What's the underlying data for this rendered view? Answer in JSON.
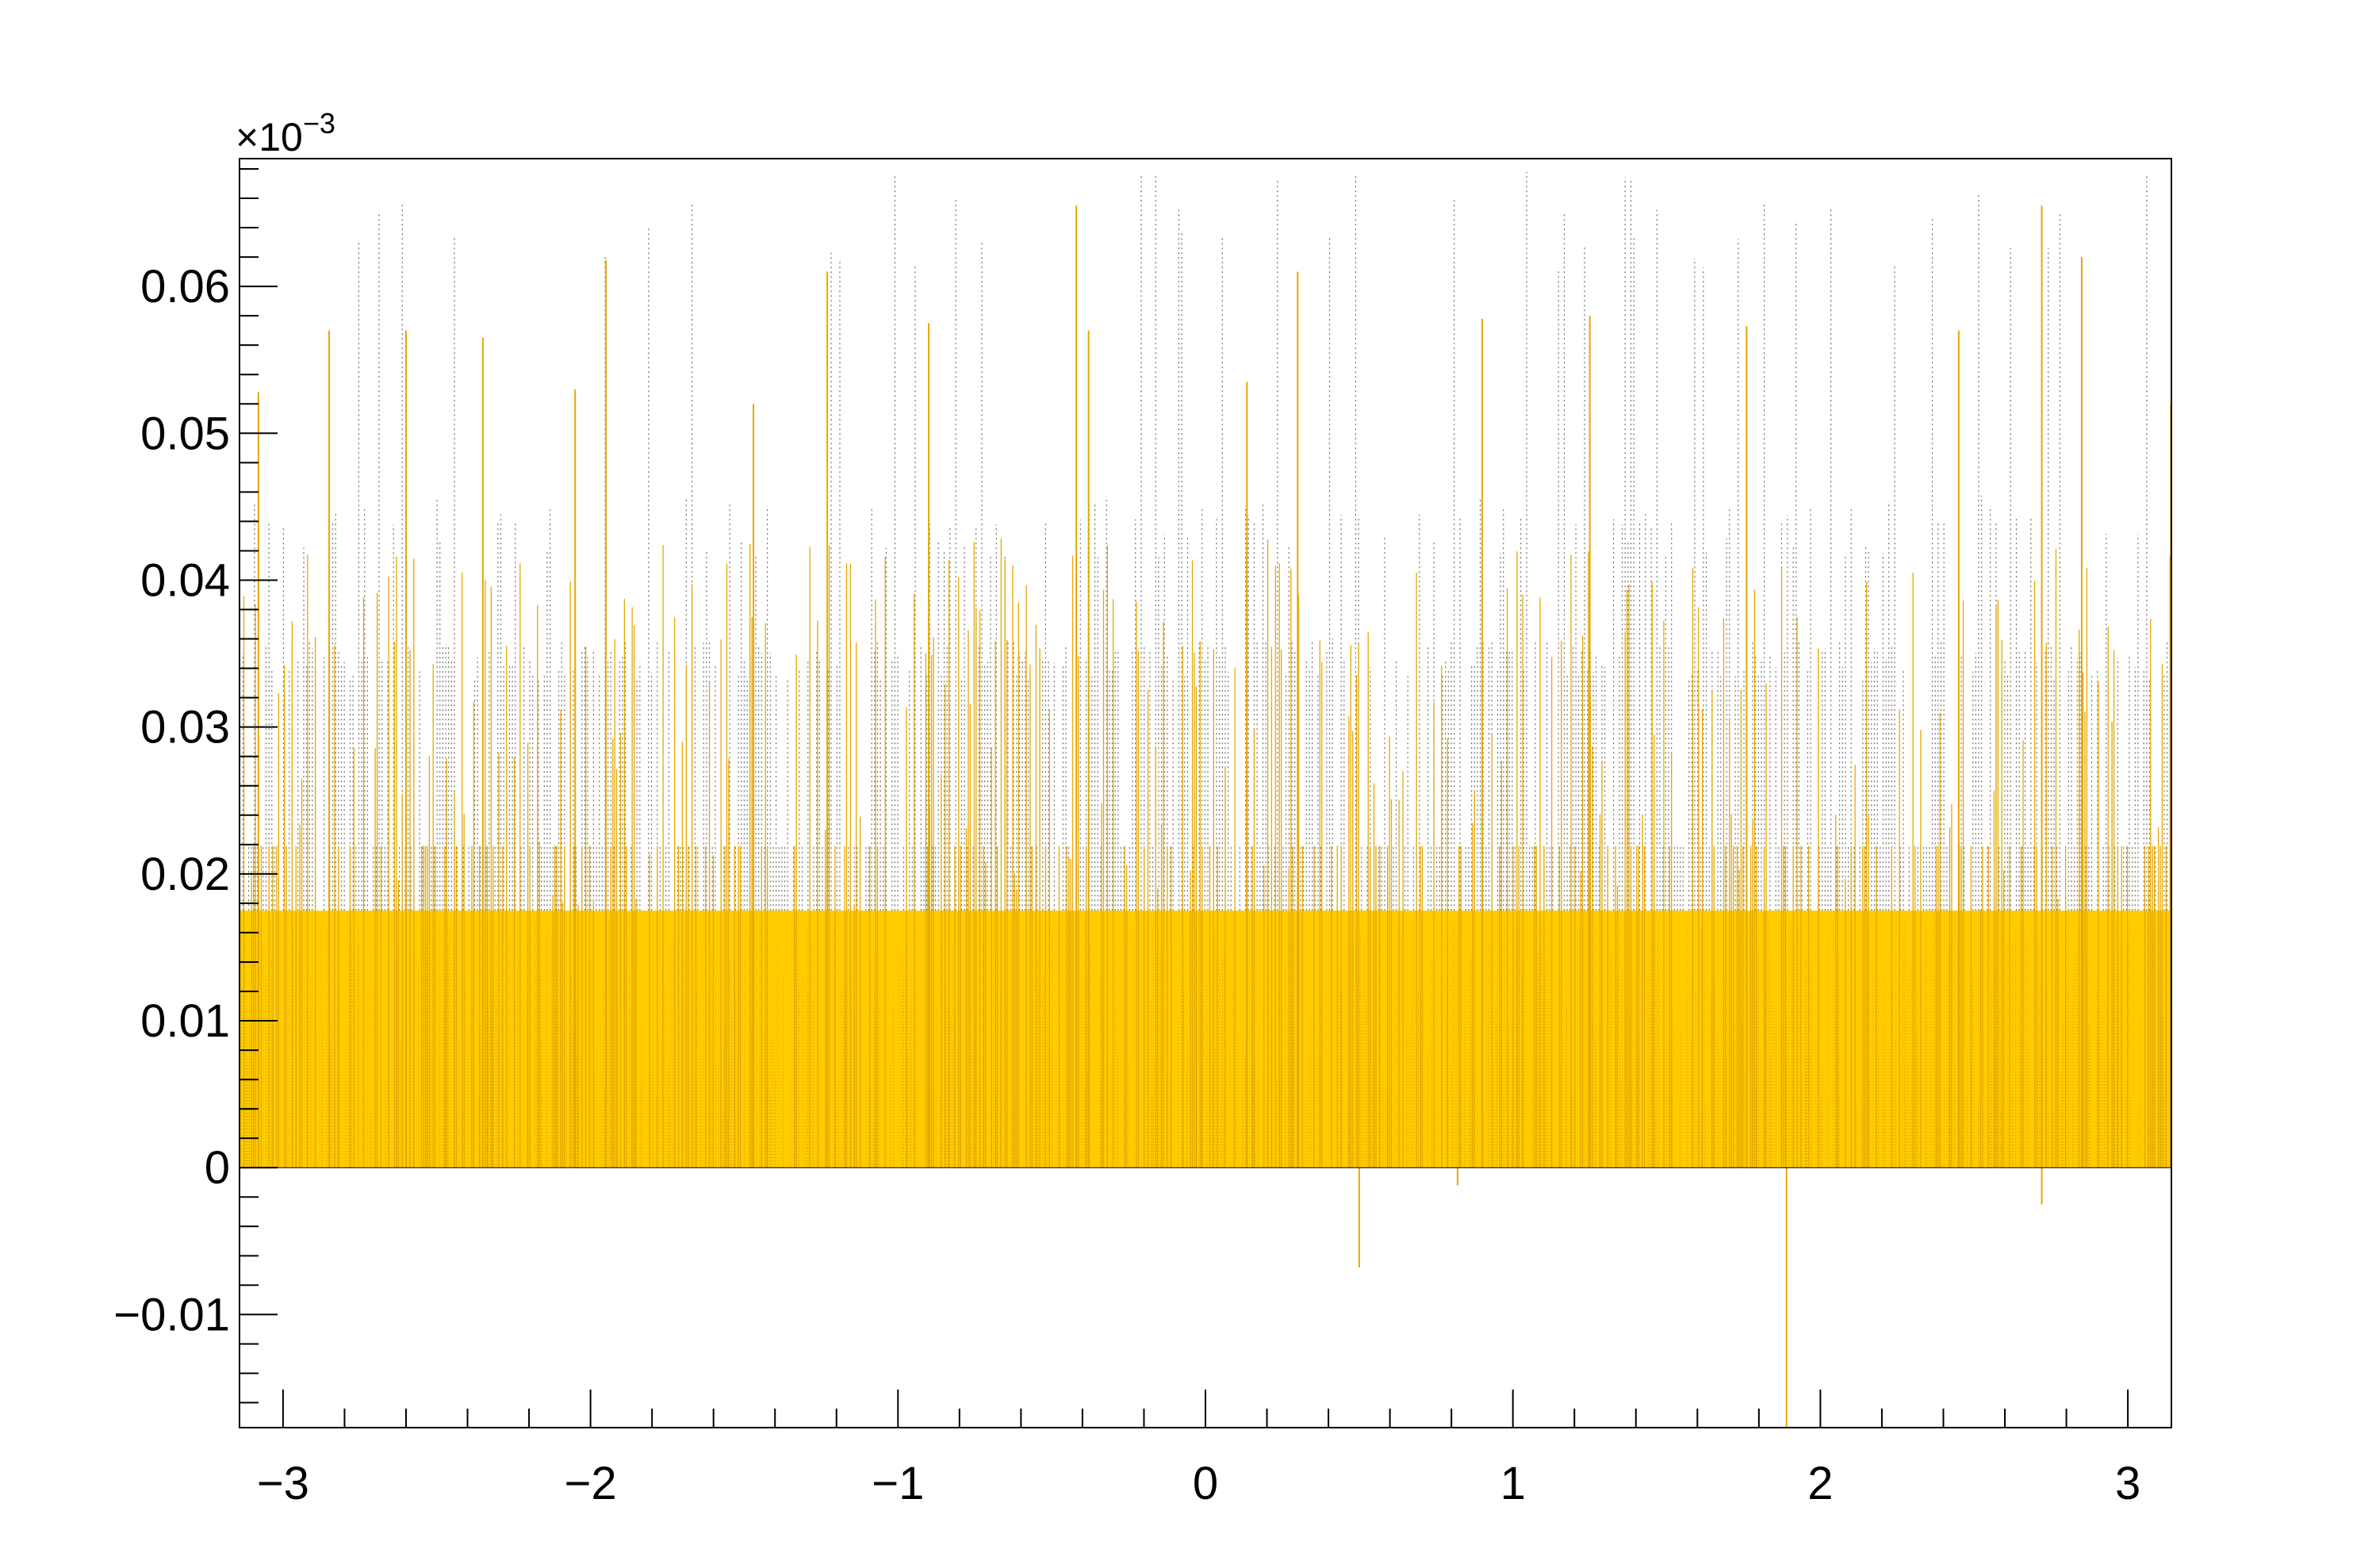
{
  "chart_data": {
    "type": "bar",
    "title": "",
    "xlabel": "",
    "ylabel": "",
    "xlim": [
      -3.1416,
      3.1416
    ],
    "ylim": [
      -1.77e-05,
      6.87e-05
    ],
    "y_multiplier_label": "×10",
    "y_multiplier_exponent": "−3",
    "grid": false,
    "legend": "none",
    "colors": {
      "fill": "#ffcc00",
      "stroke": "#e6a800",
      "dotted": "#6b6b6b",
      "frame": "#000000"
    },
    "x_ticks": [
      {
        "value": -3,
        "label": "−3"
      },
      {
        "value": -2,
        "label": "−2"
      },
      {
        "value": -1,
        "label": "−1"
      },
      {
        "value": 0,
        "label": "0"
      },
      {
        "value": 1,
        "label": "1"
      },
      {
        "value": 2,
        "label": "2"
      },
      {
        "value": 3,
        "label": "3"
      }
    ],
    "y_ticks": [
      {
        "value": -1e-05,
        "label": "−0.01"
      },
      {
        "value": 0,
        "label": "0"
      },
      {
        "value": 1e-05,
        "label": "0.01"
      },
      {
        "value": 2e-05,
        "label": "0.02"
      },
      {
        "value": 3e-05,
        "label": "0.03"
      },
      {
        "value": 4e-05,
        "label": "0.04"
      },
      {
        "value": 5e-05,
        "label": "0.05"
      },
      {
        "value": 6e-05,
        "label": "0.06"
      }
    ],
    "series": [
      {
        "style": "filled histogram",
        "bins": 2000,
        "baseline_level": 1.75e-05,
        "secondary_level": 2.19e-05,
        "prominent_spikes": [
          {
            "x": -3.08,
            "y": 5.28e-05
          },
          {
            "x": -2.85,
            "y": 5.7e-05
          },
          {
            "x": -2.6,
            "y": 5.7e-05
          },
          {
            "x": -2.35,
            "y": 5.65e-05
          },
          {
            "x": -2.05,
            "y": 5.3e-05
          },
          {
            "x": -1.95,
            "y": 6.18e-05
          },
          {
            "x": -1.47,
            "y": 5.2e-05
          },
          {
            "x": -1.23,
            "y": 6.1e-05
          },
          {
            "x": -0.9,
            "y": 5.75e-05
          },
          {
            "x": -0.42,
            "y": 6.55e-05
          },
          {
            "x": -0.38,
            "y": 5.7e-05
          },
          {
            "x": 0.135,
            "y": 5.35e-05
          },
          {
            "x": 0.3,
            "y": 6.1e-05
          },
          {
            "x": 0.9,
            "y": 5.78e-05
          },
          {
            "x": 1.25,
            "y": 5.8e-05
          },
          {
            "x": 1.76,
            "y": 5.73e-05
          },
          {
            "x": 2.45,
            "y": 5.7e-05
          },
          {
            "x": 2.72,
            "y": 6.55e-05
          },
          {
            "x": 2.85,
            "y": 6.2e-05
          },
          {
            "x": 3.14,
            "y": 5.2e-05
          }
        ],
        "negative_spikes": [
          {
            "x": 0.5,
            "y": -6.8e-06
          },
          {
            "x": 1.89,
            "y": -1.77e-05
          },
          {
            "x": 2.72,
            "y": -2.5e-06
          },
          {
            "x": 0.82,
            "y": -1.2e-06
          }
        ]
      },
      {
        "style": "dotted histogram",
        "bins": 2000,
        "baseline_level": 1.75e-05,
        "upper_levels": [
          2.19e-05,
          3.5e-05,
          4.37e-05,
          6.8e-05
        ]
      }
    ]
  }
}
